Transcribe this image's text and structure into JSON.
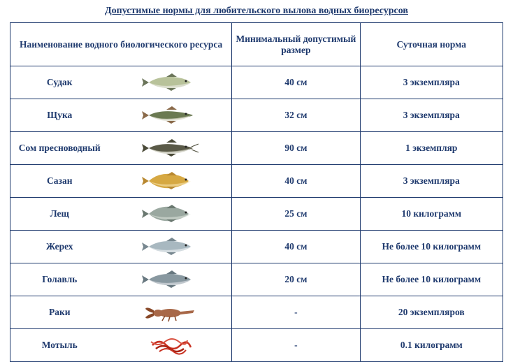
{
  "title": "Допустимые нормы для любительского вылова водных биоресурсов",
  "headers": {
    "name": "Наименование водного биологического ресурса",
    "size": "Минимальный допустимый размер",
    "limit": "Суточная норма"
  },
  "styling": {
    "type": "table",
    "border_color": "#1f3a6e",
    "text_color": "#1f3a6e",
    "background_color": "#ffffff",
    "font_family": "Times New Roman",
    "title_fontsize": 14,
    "cell_fontsize": 13.5,
    "columns": [
      "name",
      "image",
      "min_size",
      "daily_limit"
    ],
    "col_widths_pct": [
      20,
      25,
      26,
      29
    ]
  },
  "rows": [
    {
      "name": "Судак",
      "icon": "fish-perch",
      "size": "40 см",
      "limit": "3 экземпляра",
      "body_color": "#b8c29a",
      "fin_color": "#6b755a",
      "belly_color": "#e8e8e0"
    },
    {
      "name": "Щука",
      "icon": "fish-pike",
      "size": "32 см",
      "limit": "3 экземпляра",
      "body_color": "#6b7a52",
      "fin_color": "#8a6a4a",
      "belly_color": "#d8d8c8"
    },
    {
      "name": "Сом пресноводный",
      "icon": "fish-catfish",
      "size": "90 см",
      "limit": "1 экземпляр",
      "body_color": "#5a5a48",
      "fin_color": "#4a4a38",
      "belly_color": "#c8c8b8"
    },
    {
      "name": "Сазан",
      "icon": "fish-carp",
      "size": "40 см",
      "limit": "3 экземпляра",
      "body_color": "#d6a842",
      "fin_color": "#b88830",
      "belly_color": "#f2dca0"
    },
    {
      "name": "Лещ",
      "icon": "fish-bream",
      "size": "25 см",
      "limit": "10 килограмм",
      "body_color": "#9aa8a0",
      "fin_color": "#6a7870",
      "belly_color": "#d0d8d0"
    },
    {
      "name": "Жерех",
      "icon": "fish-asp",
      "size": "40 см",
      "limit": "Не более 10 килограмм",
      "body_color": "#a8b8c0",
      "fin_color": "#788890",
      "belly_color": "#e8ecf0"
    },
    {
      "name": "Голавль",
      "icon": "fish-chub",
      "size": "20 см",
      "limit": "Не более 10 килограмм",
      "body_color": "#8898a0",
      "fin_color": "#687880",
      "belly_color": "#d8dce0"
    },
    {
      "name": "Раки",
      "icon": "crayfish",
      "size": "-",
      "limit": "20 экземпляров",
      "body_color": "#a86848",
      "fin_color": "#884828",
      "belly_color": "#c88858"
    },
    {
      "name": "Мотыль",
      "icon": "bloodworm",
      "size": "-",
      "limit": "0.1 килограмм",
      "body_color": "#c83020",
      "fin_color": "#a82010",
      "belly_color": "#d85040"
    }
  ]
}
